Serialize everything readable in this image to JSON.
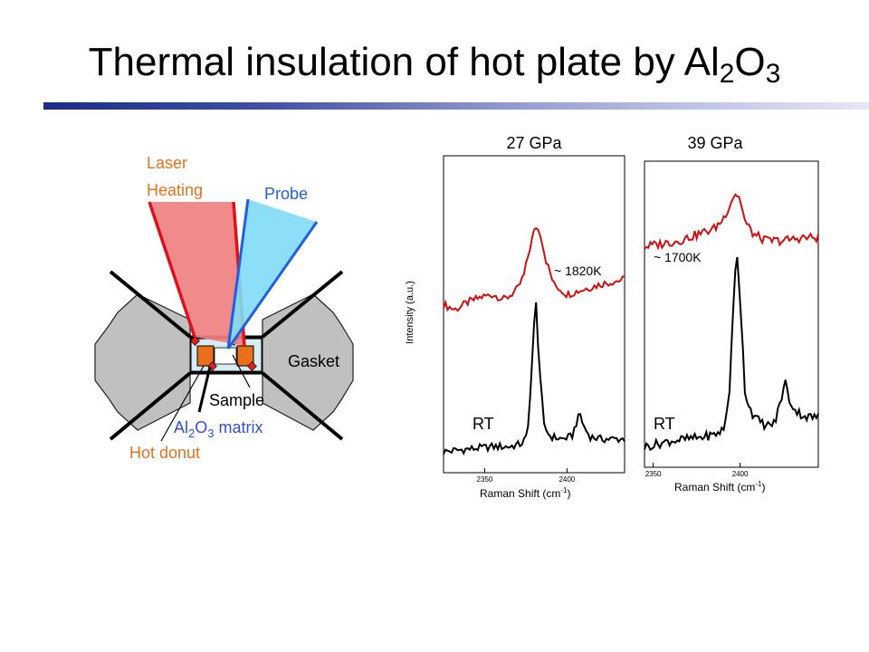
{
  "slide": {
    "title_main": "Thermal insulation of hot plate by Al",
    "title_sub1": "2",
    "title_mid": "O",
    "title_sub2": "3"
  },
  "diagram": {
    "laser_line1": "Laser",
    "laser_line2": "Heating",
    "probe": "Probe",
    "gasket": "Gasket",
    "sample": "Sample",
    "matrix_a": "Al",
    "matrix_sub1": "2",
    "matrix_b": "O",
    "matrix_sub2": "3",
    "matrix_c": " matrix",
    "hot_donut": "Hot donut",
    "colors": {
      "laser": "#e0101a",
      "laser_fill": "#f08080",
      "probe": "#2060e0",
      "probe_fill": "#7fdcf6",
      "hot_donut": "#e8701a",
      "gasket": "#c0c0c0"
    }
  },
  "chart_data": [
    {
      "type": "line",
      "title": "27 GPa",
      "ylabel": "Intensity (a.u.)",
      "xlabel": "Raman Shift (cm",
      "xlabel_sup": "-1",
      "xlabel_end": ")",
      "xlim": [
        2325,
        2435
      ],
      "xticks": [
        "2350",
        "2400"
      ],
      "xtick_values": [
        2350,
        2400
      ],
      "series": [
        {
          "name": "~ 1820K",
          "color": "#d01010",
          "x": [
            2325,
            2332,
            2340,
            2348,
            2355,
            2362,
            2370,
            2374,
            2378,
            2381,
            2384,
            2387,
            2392,
            2400,
            2410,
            2420,
            2435
          ],
          "y": [
            0.62,
            0.6,
            0.63,
            0.65,
            0.66,
            0.64,
            0.68,
            0.74,
            0.86,
            0.93,
            0.9,
            0.8,
            0.7,
            0.66,
            0.68,
            0.7,
            0.72
          ]
        },
        {
          "name": "RT",
          "color": "#000000",
          "x": [
            2325,
            2340,
            2355,
            2365,
            2372,
            2376,
            2379,
            2381,
            2383,
            2386,
            2390,
            2397,
            2403,
            2406,
            2408,
            2410,
            2414,
            2420,
            2435
          ],
          "y": [
            0.04,
            0.05,
            0.06,
            0.06,
            0.07,
            0.1,
            0.42,
            0.65,
            0.4,
            0.14,
            0.1,
            0.09,
            0.1,
            0.16,
            0.19,
            0.14,
            0.1,
            0.09,
            0.09
          ]
        }
      ]
    },
    {
      "type": "line",
      "title": "39 GPa",
      "xlabel": "Raman Shift (cm",
      "xlabel_sup": "-1",
      "xlabel_end": ")",
      "xlim": [
        2345,
        2445
      ],
      "xticks": [
        "2350",
        "2400"
      ],
      "xtick_values": [
        2350,
        2400
      ],
      "series": [
        {
          "name": "~ 1700K",
          "color": "#d01010",
          "x": [
            2345,
            2355,
            2365,
            2375,
            2385,
            2390,
            2394,
            2397,
            2400,
            2403,
            2408,
            2415,
            2425,
            2435,
            2445
          ],
          "y": [
            0.72,
            0.73,
            0.74,
            0.76,
            0.78,
            0.81,
            0.86,
            0.9,
            0.88,
            0.8,
            0.76,
            0.74,
            0.74,
            0.75,
            0.75
          ]
        },
        {
          "name": "RT",
          "color": "#000000",
          "x": [
            2345,
            2360,
            2375,
            2385,
            2391,
            2394,
            2396,
            2398,
            2400,
            2403,
            2408,
            2415,
            2420,
            2424,
            2426,
            2428,
            2432,
            2438,
            2445
          ],
          "y": [
            0.05,
            0.07,
            0.08,
            0.09,
            0.11,
            0.25,
            0.5,
            0.72,
            0.55,
            0.22,
            0.15,
            0.12,
            0.13,
            0.22,
            0.27,
            0.21,
            0.17,
            0.15,
            0.15
          ]
        }
      ]
    }
  ]
}
